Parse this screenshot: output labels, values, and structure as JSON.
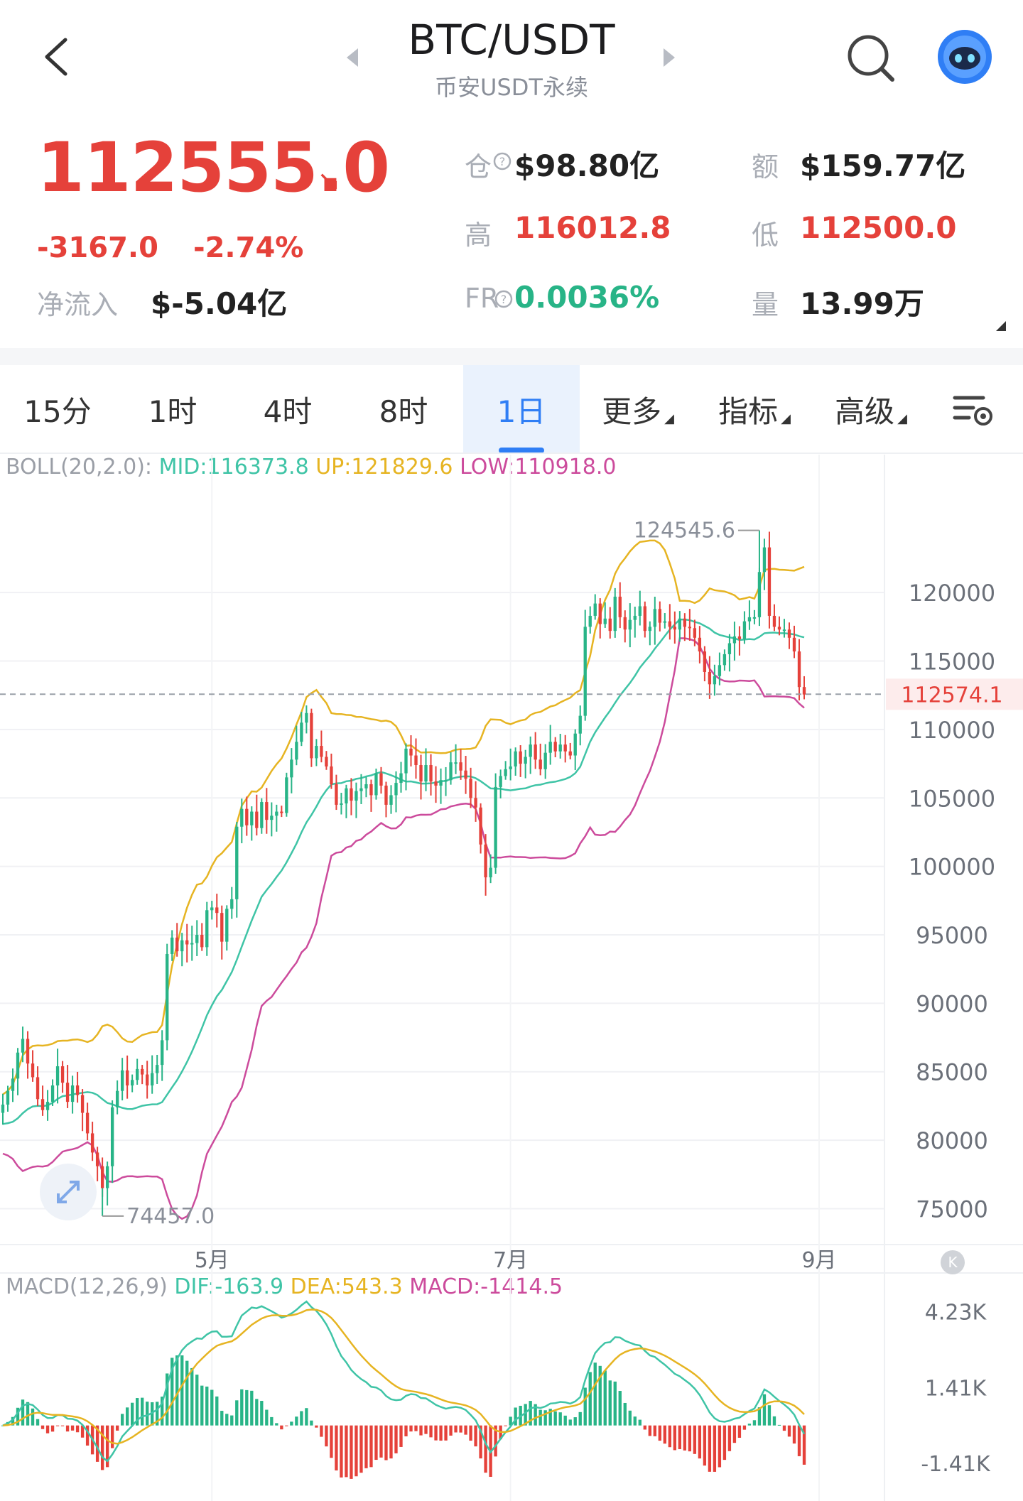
{
  "header": {
    "title": "BTC/USDT",
    "subtitle": "币安USDT永续"
  },
  "ticker": {
    "price": "112555.0",
    "change": "-3167.0",
    "change_pct": "-2.74%",
    "net_inflow_label": "净流入",
    "net_inflow": "$-5.04亿",
    "oi_label": "仓",
    "oi": "$98.80亿",
    "turnover_label": "额",
    "turnover": "$159.77亿",
    "high_label": "高",
    "high": "116012.8",
    "low_label": "低",
    "low": "112500.0",
    "fr_label": "FR",
    "fr": "0.0036%",
    "volume_label": "量",
    "volume": "13.99万"
  },
  "tabs": [
    {
      "label": "15分",
      "active": false,
      "dropdown": false
    },
    {
      "label": "1时",
      "active": false,
      "dropdown": false
    },
    {
      "label": "4时",
      "active": false,
      "dropdown": false
    },
    {
      "label": "8时",
      "active": false,
      "dropdown": false
    },
    {
      "label": "1日",
      "active": true,
      "dropdown": false
    },
    {
      "label": "更多",
      "active": false,
      "dropdown": true
    },
    {
      "label": "指标",
      "active": false,
      "dropdown": true
    },
    {
      "label": "高级",
      "active": false,
      "dropdown": true
    }
  ],
  "colors": {
    "up": "#28b487",
    "down": "#e5413a",
    "mid": "#3fc4a6",
    "upper": "#e6b422",
    "lower": "#cc4b9c",
    "accent": "#2f7ef5"
  },
  "boll_legend": {
    "name": "BOLL(20,2.0):",
    "mid": "MID:116373.8",
    "up": "UP:121829.6",
    "low": "LOW:110918.0"
  },
  "macd_legend": {
    "name": "MACD(12,26,9)",
    "dif": "DIF:-163.9",
    "dea": "DEA:543.3",
    "macd": "MACD:-1414.5"
  },
  "chart_data": [
    {
      "type": "candlestick",
      "title": "",
      "y_ticks": [
        "120000",
        "115000",
        "110000",
        "105000",
        "100000",
        "95000",
        "90000",
        "85000",
        "80000",
        "75000"
      ],
      "ylim": [
        73000,
        128000
      ],
      "x_ticks": [
        "5月",
        "7月",
        "9月"
      ],
      "current_price_label": "112574.1",
      "current_price": 112574.1,
      "max_label": "124545.6",
      "max_value": 124545.6,
      "min_label": "74457.0",
      "min_value": 74457.0,
      "close_series": [
        82600,
        83600,
        84500,
        86400,
        87400,
        85600,
        84600,
        83000,
        82200,
        82800,
        84000,
        85400,
        84200,
        82800,
        84000,
        83300,
        82000,
        80500,
        79100,
        78100,
        76500,
        78100,
        82400,
        83600,
        85100,
        84000,
        84400,
        85200,
        84800,
        84000,
        84900,
        85500,
        87300,
        93600,
        94800,
        93800,
        94600,
        94300,
        94400,
        95000,
        94100,
        96800,
        97000,
        96600,
        94500,
        96900,
        97600,
        102900,
        104200,
        103000,
        104000,
        102800,
        104700,
        103400,
        103700,
        104000,
        103900,
        106500,
        107800,
        109100,
        110500,
        111200,
        107900,
        108800,
        108000,
        107300,
        106000,
        104500,
        104600,
        105700,
        104800,
        105500,
        105700,
        106000,
        105200,
        106800,
        105900,
        104500,
        105200,
        106100,
        106800,
        108600,
        108100,
        107400,
        106200,
        107400,
        106200,
        105900,
        106300,
        106300,
        107600,
        107600,
        107000,
        106400,
        105000,
        104300,
        101600,
        99200,
        99900,
        105800,
        106600,
        107100,
        107300,
        108400,
        107500,
        108000,
        108900,
        107800,
        107100,
        108300,
        109100,
        108400,
        108900,
        108400,
        108100,
        109700,
        111000,
        117500,
        118300,
        119200,
        117700,
        118100,
        117200,
        119700,
        118200,
        117300,
        118000,
        118300,
        119000,
        117200,
        117500,
        118800,
        117800,
        117900,
        117500,
        117300,
        118100,
        117500,
        117400,
        116700,
        115700,
        114200,
        113300,
        113900,
        114700,
        115500,
        116300,
        116800,
        116600,
        117900,
        118200,
        118200,
        121500,
        123300,
        118300,
        117500,
        117300,
        117300,
        116700,
        115700,
        113100,
        112555
      ],
      "boll": {
        "period": 20,
        "std_mult": 2.0,
        "mid_last": 116373.8,
        "up_last": 121829.6,
        "low_last": 110918.0
      }
    },
    {
      "type": "bar+line",
      "title": "MACD(12,26,9)",
      "y_ticks": [
        "4.23K",
        "1.41K",
        "-1.41K"
      ],
      "params": [
        12,
        26,
        9
      ],
      "dif_last": -163.9,
      "dea_last": 543.3,
      "macd_last": -1414.5
    }
  ]
}
